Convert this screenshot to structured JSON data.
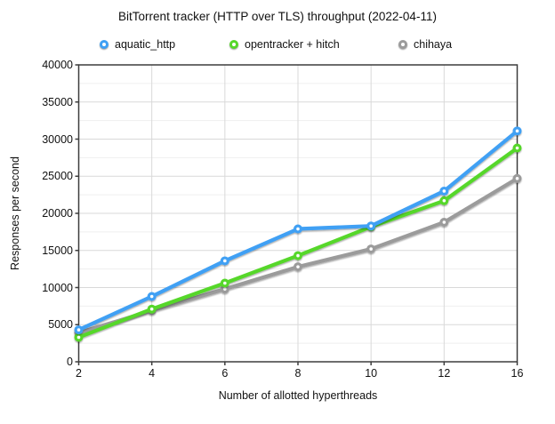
{
  "chart_data": {
    "type": "line",
    "title": "BitTorrent tracker (HTTP over TLS) throughput (2022-04-11)",
    "xlabel": "Number of allotted hyperthreads",
    "ylabel": "Responses per second",
    "categories": [
      2,
      4,
      6,
      8,
      10,
      12,
      16
    ],
    "x_tick_labels": [
      "2",
      "4",
      "6",
      "8",
      "10",
      "12",
      "16"
    ],
    "y_ticks": [
      0,
      5000,
      10000,
      15000,
      20000,
      25000,
      30000,
      35000,
      40000
    ],
    "ylim": [
      0,
      40000
    ],
    "y_minor_step": 2500,
    "grid": true,
    "legend_position": "top",
    "marker_style": "ring",
    "series": [
      {
        "name": "aquatic_http",
        "color": "#3FA0F4",
        "values": [
          4300,
          8800,
          13600,
          17900,
          18300,
          23000,
          31100
        ]
      },
      {
        "name": "opentracker + hitch",
        "color": "#56D72B",
        "values": [
          3300,
          7100,
          10600,
          14300,
          18200,
          21700,
          28800
        ]
      },
      {
        "name": "chihaya",
        "color": "#9B9B9B",
        "values": [
          3900,
          6900,
          9800,
          12800,
          15200,
          18800,
          24700
        ]
      }
    ],
    "colors": {
      "axis": "#3d3d3d",
      "grid_major": "#d9d9d9",
      "grid_minor": "#efefef",
      "text": "#111111"
    }
  },
  "legend_x_positions": [
    112,
    258,
    448
  ]
}
